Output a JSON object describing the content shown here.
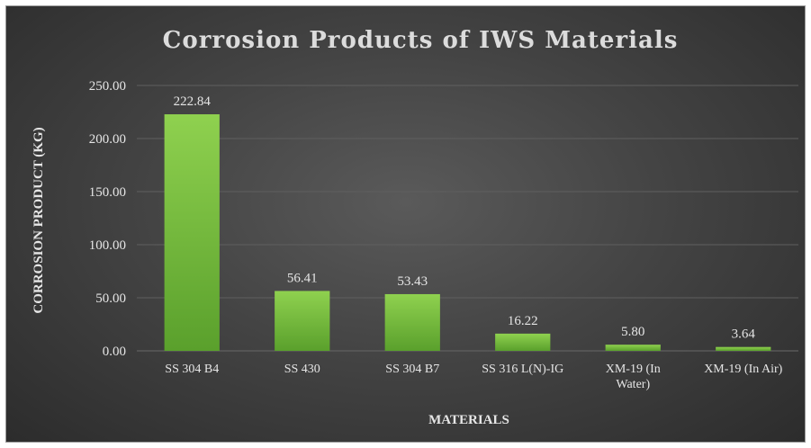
{
  "chart_data": {
    "type": "bar",
    "title": "Corrosion Products of IWS Materials",
    "xlabel": "MATERIALS",
    "ylabel": "CORROSION PRODUCT (KG)",
    "categories": [
      "SS 304 B4",
      "SS 430",
      "SS 304 B7",
      "SS 316 L(N)-IG",
      "XM-19 (In Water)",
      "XM-19 (In Air)"
    ],
    "category_lines": [
      [
        "SS 304 B4"
      ],
      [
        "SS 430"
      ],
      [
        "SS 304 B7"
      ],
      [
        "SS 316 L(N)-IG"
      ],
      [
        "XM-19 (In",
        "Water)"
      ],
      [
        "XM-19 (In Air)"
      ]
    ],
    "values": [
      222.84,
      56.41,
      53.43,
      16.22,
      5.8,
      3.64
    ],
    "data_labels": [
      "222.84",
      "56.41",
      "53.43",
      "16.22",
      "5.80",
      "3.64"
    ],
    "yticks": [
      0,
      50,
      100,
      150,
      200,
      250
    ],
    "ytick_labels": [
      "0.00",
      "50.00",
      "100.00",
      "150.00",
      "200.00",
      "250.00"
    ],
    "ylim": [
      0,
      250
    ],
    "grid": true,
    "legend": "none",
    "colors": {
      "bar_top": "#8fd14f",
      "bar_bottom": "#5aa02c",
      "gridline": "#5f5f5f",
      "text": "#e6e6e6"
    }
  }
}
